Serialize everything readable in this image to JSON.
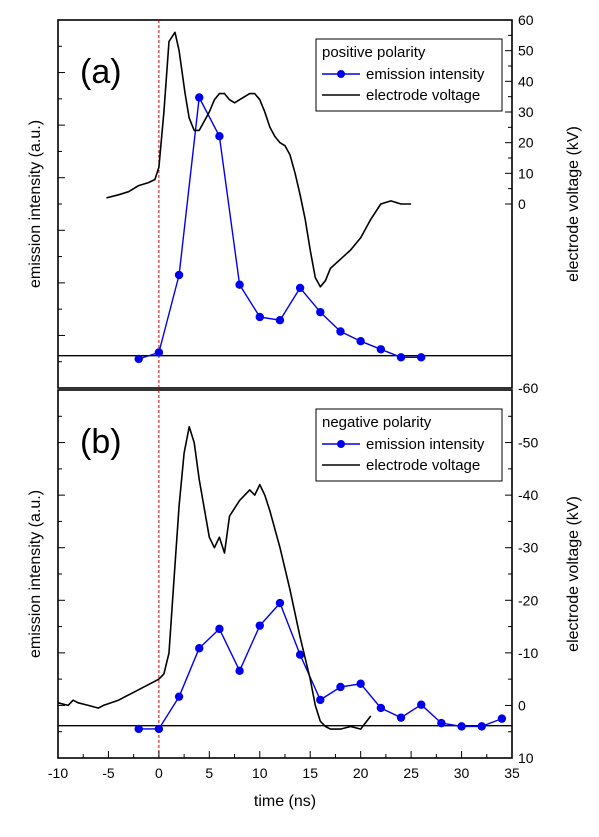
{
  "x_axis": {
    "label": "time (ns)",
    "ticks": [
      "-10",
      "-5",
      "0",
      "5",
      "10",
      "15",
      "20",
      "25",
      "30",
      "35"
    ]
  },
  "chart_data": [
    {
      "type": "line",
      "panel_label": "(a)",
      "legend_title": "positive polarity",
      "xlabel": "time (ns)",
      "ylabel": "emission intensity (a.u.)",
      "y2label": "electrode voltage (kV)",
      "xlim": [
        -10,
        35
      ],
      "ylim": [
        -0.1,
        1.04
      ],
      "y2lim": [
        -60,
        60
      ],
      "y2_ticks": [
        "60",
        "50",
        "40",
        "30",
        "20",
        "10",
        "0",
        "-60"
      ],
      "series": [
        {
          "name": "emission intensity",
          "axis": "left",
          "color": "#0000ee",
          "x": [
            -2,
            0,
            2,
            4,
            6,
            8,
            10,
            12,
            14,
            16,
            18,
            20,
            22,
            24,
            26
          ],
          "y": [
            -0.01,
            0.01,
            0.25,
            0.8,
            0.68,
            0.22,
            0.12,
            0.11,
            0.21,
            0.135,
            0.075,
            0.045,
            0.02,
            -0.005,
            -0.005
          ]
        },
        {
          "name": "electrode voltage",
          "axis": "right",
          "color": "#000000",
          "x": [
            -5.2,
            -4,
            -3,
            -2,
            -1,
            -0.4,
            0,
            0.5,
            1,
            1.6,
            2,
            2.6,
            3,
            3.5,
            4,
            5,
            5.5,
            6,
            6.5,
            7,
            7.5,
            8,
            8.5,
            9,
            9.5,
            10,
            10.5,
            11,
            11.5,
            12,
            12.5,
            13,
            13.5,
            14,
            14.5,
            15,
            15.5,
            16,
            16.5,
            17,
            18,
            19,
            20,
            21,
            22,
            23,
            24,
            25
          ],
          "y": [
            2,
            3,
            4,
            6,
            7,
            8,
            12,
            30,
            53,
            56,
            50,
            36,
            28,
            24,
            24,
            30,
            34,
            36,
            36,
            34,
            33,
            34,
            35,
            36,
            36,
            34,
            30,
            25,
            22,
            20,
            19,
            16,
            10,
            3,
            -5,
            -15,
            -24,
            -27,
            -25,
            -21,
            -18,
            -15,
            -11,
            -5,
            0,
            1,
            0,
            0
          ]
        }
      ]
    },
    {
      "type": "line",
      "panel_label": "(b)",
      "legend_title": "negative polarity",
      "xlabel": "time (ns)",
      "ylabel": "emission intensity (a.u.)",
      "y2label": "electrode voltage (kV)",
      "xlim": [
        -10,
        35
      ],
      "ylim": [
        -0.1,
        1.04
      ],
      "y2lim": [
        10,
        -60
      ],
      "y2_ticks": [
        "-50",
        "-40",
        "-30",
        "-20",
        "-10",
        "0",
        "10"
      ],
      "series": [
        {
          "name": "emission intensity",
          "axis": "left",
          "color": "#0000ee",
          "x": [
            -2,
            0,
            2,
            4,
            6,
            8,
            10,
            12,
            14,
            16,
            18,
            20,
            22,
            24,
            26,
            28,
            30,
            32,
            34
          ],
          "y": [
            -0.01,
            -0.01,
            0.09,
            0.24,
            0.3,
            0.17,
            0.31,
            0.38,
            0.22,
            0.08,
            0.12,
            0.13,
            0.055,
            0.025,
            0.065,
            0.008,
            -0.002,
            -0.002,
            0.022
          ]
        },
        {
          "name": "electrode voltage",
          "axis": "right",
          "color": "#000000",
          "x": [
            -10,
            -9,
            -8.5,
            -8,
            -7,
            -6,
            -5.5,
            -4,
            -3,
            -2,
            -1,
            -0.5,
            0,
            0.5,
            1,
            1.5,
            2,
            2.5,
            3,
            3.5,
            4,
            5,
            5.5,
            6,
            6.5,
            7,
            8,
            9,
            9.5,
            10,
            10.5,
            11,
            12,
            13,
            14,
            15,
            15.5,
            16,
            16.5,
            17,
            18,
            19,
            20,
            21
          ],
          "y": [
            -0.5,
            0,
            -1,
            -0.5,
            0,
            0.5,
            0,
            -1,
            -2,
            -3,
            -4,
            -4.5,
            -5,
            -6,
            -10,
            -24,
            -38,
            -48,
            -53,
            -50,
            -43,
            -32,
            -30,
            -32,
            -29,
            -36,
            -39,
            -41,
            -40,
            -42,
            -40,
            -37,
            -30,
            -22,
            -13,
            -5,
            0,
            3,
            4,
            4.5,
            4.5,
            4,
            4.5,
            2
          ]
        }
      ]
    }
  ]
}
